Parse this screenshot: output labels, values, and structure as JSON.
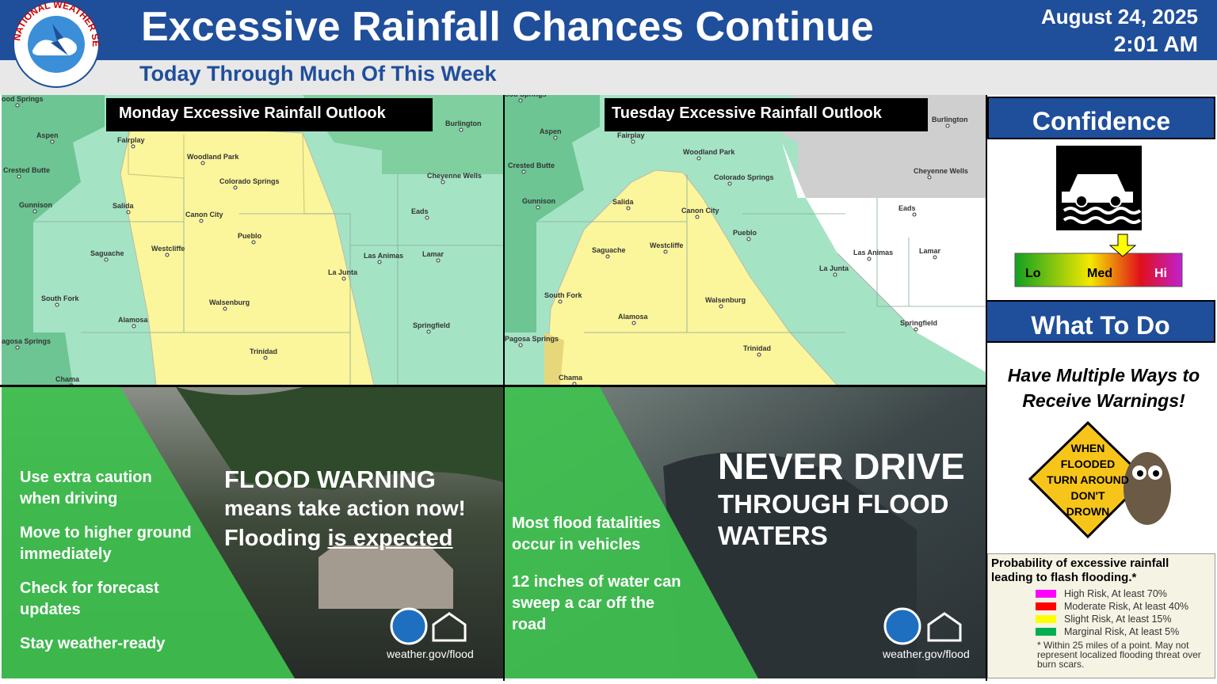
{
  "header": {
    "logo": "NATIONAL WEATHER SERVICE",
    "title": "Excessive Rainfall Chances Continue",
    "subtitle": "Today Through Much Of This Week",
    "date": "August 24, 2025",
    "time": "2:01 AM"
  },
  "maps": [
    {
      "title": "Monday Excessive Rainfall Outlook",
      "places": [
        "ood Springs",
        "Aspen",
        "Fairplay",
        "Crested Butte",
        "Gunnison",
        "Salida",
        "Woodland Park",
        "Colorado Springs",
        "Burlington",
        "Cheyenne Wells",
        "Canon City",
        "Eads",
        "Pueblo",
        "Saguache",
        "Westcliffe",
        "Las Animas",
        "Lamar",
        "La Junta",
        "South Fork",
        "Walsenburg",
        "Alamosa",
        "Springfield",
        "agosa Springs",
        "Trinidad",
        "Chama"
      ]
    },
    {
      "title": "Tuesday Excessive Rainfall Outlook",
      "places": [
        "ood Springs",
        "Aspen",
        "Fairplay",
        "Crested Butte",
        "Woodland Park",
        "Burlington",
        "Colorado Springs",
        "Cheyenne Wells",
        "Gunnison",
        "Salida",
        "Canon City",
        "Eads",
        "Pueblo",
        "Saguache",
        "Westcliffe",
        "Las Animas",
        "Lamar",
        "La Junta",
        "South Fork",
        "Walsenburg",
        "Alamosa",
        "Springfield",
        "Pagosa Springs",
        "Trinidad",
        "Chama"
      ]
    }
  ],
  "warning_panel": {
    "bullets": [
      "Use extra caution when driving",
      "Move to higher ground immediately",
      "Check for forecast updates",
      "Stay weather-ready"
    ],
    "headline": "FLOOD WARNING",
    "line2": "means take action now!",
    "line3_start": "Flooding ",
    "line3_underlined": "is expected",
    "url": "weather.gov/flood"
  },
  "drive_panel": {
    "bullets": [
      "Most flood fatalities occur in vehicles",
      "12 inches of water can sweep a car off the road"
    ],
    "headline": "NEVER DRIVE",
    "line2": "THROUGH FLOOD",
    "line3": "WATERS",
    "url": "weather.gov/flood"
  },
  "sidebar": {
    "confidence_title": "Confidence",
    "scale": [
      "Lo",
      "Med",
      "Hi"
    ],
    "what_title": "What To Do",
    "advice": "Have Multiple Ways to Receive Warnings!",
    "sign": [
      "WHEN",
      "FLOODED",
      "TURN AROUND",
      "DON'T",
      "DROWN"
    ],
    "legend": {
      "title": "Probability of excessive rainfall leading to flash flooding.*",
      "entries": [
        {
          "label": "High Risk, At least 70%",
          "color": "#ff00ff"
        },
        {
          "label": "Moderate Risk, At least 40%",
          "color": "#ff0000"
        },
        {
          "label": "Slight Risk, At least 15%",
          "color": "#ffff00"
        },
        {
          "label": "Marginal Risk, At least 5%",
          "color": "#00b050"
        }
      ],
      "note": "* Within 25 miles of a point. May not represent localized flooding threat over burn scars."
    }
  }
}
